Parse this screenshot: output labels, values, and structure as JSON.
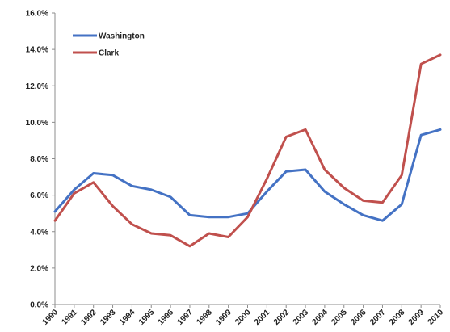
{
  "chart_data": {
    "type": "line",
    "title": "",
    "xlabel": "",
    "ylabel": "",
    "categories": [
      "1990",
      "1991",
      "1992",
      "1993",
      "1994",
      "1995",
      "1996",
      "1997",
      "1998",
      "1999",
      "2000",
      "2001",
      "2002",
      "2003",
      "2004",
      "2005",
      "2006",
      "2007",
      "2008",
      "2009",
      "2010"
    ],
    "ylim": [
      0,
      16
    ],
    "yticks": [
      "0.0%",
      "2.0%",
      "4.0%",
      "6.0%",
      "8.0%",
      "10.0%",
      "12.0%",
      "14.0%",
      "16.0%"
    ],
    "grid": false,
    "legend_position": "top-left",
    "series": [
      {
        "name": "Washington",
        "color": "#4472c4",
        "values": [
          5.1,
          6.3,
          7.2,
          7.1,
          6.5,
          6.3,
          5.9,
          4.9,
          4.8,
          4.8,
          5.0,
          6.2,
          7.3,
          7.4,
          6.2,
          5.5,
          4.9,
          4.6,
          5.5,
          9.3,
          9.6
        ]
      },
      {
        "name": "Clark",
        "color": "#c0504d",
        "values": [
          4.6,
          6.1,
          6.7,
          5.4,
          4.4,
          3.9,
          3.8,
          3.2,
          3.9,
          3.7,
          4.8,
          6.9,
          9.2,
          9.6,
          7.4,
          6.4,
          5.7,
          5.6,
          7.1,
          13.2,
          13.7
        ]
      }
    ]
  }
}
